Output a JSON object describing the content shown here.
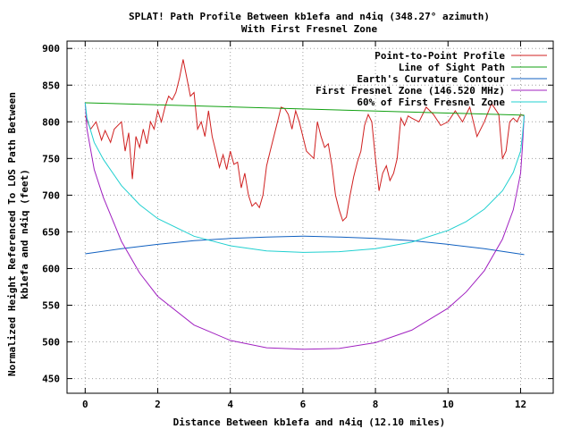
{
  "chart_data": {
    "type": "line",
    "title": "SPLAT! Path Profile Between kb1efa and n4iq (348.27° azimuth)",
    "subtitle": "With First Fresnel Zone",
    "xlabel": "Distance Between kb1efa and n4iq (12.10 miles)",
    "ylabel_line1": "Normalized Height Referenced To LOS Path Between",
    "ylabel_line2": "kb1efa and n4iq (feet)",
    "xlim": [
      -0.5,
      12.9
    ],
    "ylim": [
      430,
      910
    ],
    "xticks": [
      0,
      2,
      4,
      6,
      8,
      10,
      12
    ],
    "yticks": [
      450,
      500,
      550,
      600,
      650,
      700,
      750,
      800,
      850,
      900
    ],
    "grid": true,
    "grid_style": "dotted",
    "legend_position": "top-right",
    "series": [
      {
        "name": "Point-to-Point Profile",
        "color": "#d02020",
        "x": [
          0,
          0.15,
          0.3,
          0.45,
          0.55,
          0.7,
          0.8,
          1.0,
          1.1,
          1.2,
          1.3,
          1.4,
          1.5,
          1.6,
          1.7,
          1.8,
          1.9,
          2.0,
          2.1,
          2.2,
          2.3,
          2.4,
          2.5,
          2.6,
          2.7,
          2.8,
          2.9,
          3.0,
          3.1,
          3.2,
          3.3,
          3.4,
          3.5,
          3.6,
          3.7,
          3.8,
          3.9,
          4.0,
          4.1,
          4.2,
          4.3,
          4.4,
          4.5,
          4.6,
          4.7,
          4.8,
          4.9,
          5.0,
          5.1,
          5.2,
          5.3,
          5.4,
          5.5,
          5.6,
          5.7,
          5.8,
          5.9,
          6.0,
          6.1,
          6.2,
          6.3,
          6.4,
          6.5,
          6.6,
          6.7,
          6.8,
          6.9,
          7.0,
          7.1,
          7.2,
          7.3,
          7.4,
          7.5,
          7.6,
          7.7,
          7.8,
          7.9,
          8.0,
          8.1,
          8.2,
          8.3,
          8.4,
          8.5,
          8.6,
          8.7,
          8.8,
          8.9,
          9.0,
          9.2,
          9.4,
          9.6,
          9.8,
          10.0,
          10.2,
          10.4,
          10.6,
          10.8,
          11.0,
          11.2,
          11.4,
          11.5,
          11.6,
          11.7,
          11.8,
          11.9,
          12.0,
          12.1
        ],
        "y": [
          808,
          790,
          800,
          775,
          788,
          772,
          790,
          800,
          760,
          785,
          722,
          780,
          765,
          790,
          770,
          800,
          790,
          815,
          800,
          820,
          835,
          830,
          840,
          860,
          885,
          860,
          835,
          840,
          790,
          800,
          780,
          815,
          780,
          760,
          738,
          755,
          735,
          760,
          742,
          745,
          710,
          730,
          700,
          685,
          690,
          683,
          700,
          740,
          760,
          780,
          800,
          820,
          818,
          810,
          790,
          815,
          800,
          780,
          760,
          755,
          750,
          800,
          780,
          765,
          770,
          740,
          700,
          680,
          665,
          670,
          700,
          725,
          745,
          760,
          795,
          810,
          800,
          750,
          706,
          730,
          740,
          720,
          730,
          750,
          805,
          795,
          808,
          805,
          800,
          820,
          810,
          795,
          800,
          815,
          800,
          820,
          780,
          800,
          825,
          810,
          750,
          760,
          800,
          805,
          800,
          810,
          808
        ]
      },
      {
        "name": "Line of Sight Path",
        "color": "#10a010",
        "x": [
          0,
          12.1
        ],
        "y": [
          826,
          809
        ]
      },
      {
        "name": "Earth's Curvature Contour",
        "color": "#1060c0",
        "x": [
          0,
          1,
          2,
          3,
          4,
          5,
          6,
          6.05,
          7,
          8,
          9,
          10,
          11,
          12.1
        ],
        "y": [
          620,
          627,
          633,
          638,
          641,
          643,
          644,
          644,
          643,
          641,
          638,
          633,
          627,
          619
        ]
      },
      {
        "name": "First Fresnel Zone (146.520 MHz)",
        "color": "#a020c0",
        "x": [
          0,
          0.05,
          0.25,
          0.5,
          1,
          1.5,
          2,
          3,
          4,
          5,
          6,
          6.05,
          7,
          8,
          9,
          10,
          10.5,
          11,
          11.5,
          11.8,
          12.0,
          12.05,
          12.1
        ],
        "y": [
          826,
          790,
          735,
          697,
          637,
          594,
          562,
          523,
          502,
          492,
          490,
          490,
          491,
          499,
          516,
          546,
          568,
          597,
          640,
          680,
          730,
          765,
          809
        ]
      },
      {
        "name": "60% of First Fresnel Zone",
        "color": "#20d0d0",
        "x": [
          0,
          0.05,
          0.25,
          0.5,
          1,
          1.5,
          2,
          3,
          4,
          5,
          6,
          6.05,
          7,
          8,
          9,
          10,
          10.5,
          11,
          11.5,
          11.8,
          12.0,
          12.05,
          12.1
        ],
        "y": [
          826,
          805,
          772,
          749,
          713,
          687,
          668,
          644,
          631,
          624,
          622,
          622,
          623,
          627,
          636,
          652,
          664,
          681,
          706,
          731,
          760,
          781,
          809
        ]
      }
    ]
  }
}
